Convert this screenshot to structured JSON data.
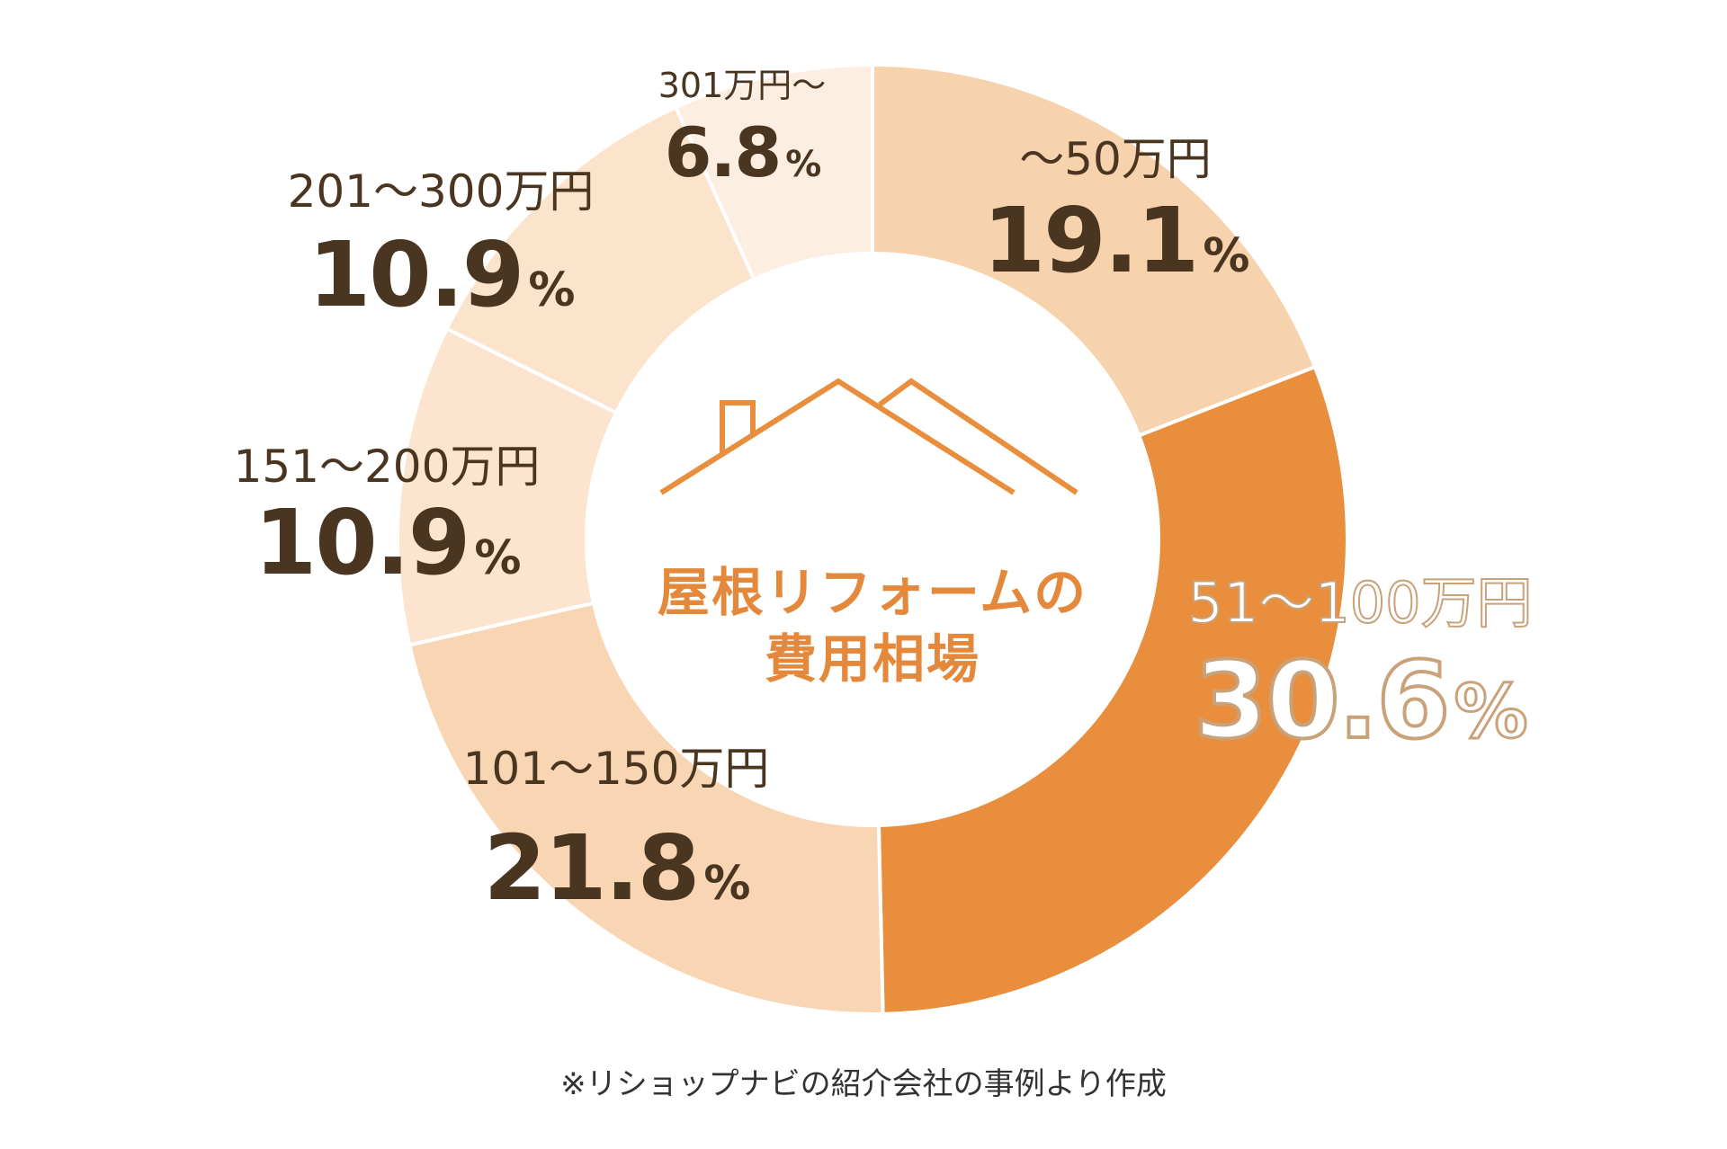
{
  "chart_data": {
    "type": "pie",
    "donut": true,
    "center_title_line1": "屋根リフォームの",
    "center_title_line2": "費用相場",
    "categories": [
      "〜50万円",
      "51〜100万円",
      "101〜150万円",
      "151〜200万円",
      "201〜300万円",
      "301万円〜"
    ],
    "values": [
      19.1,
      30.6,
      21.8,
      10.9,
      10.9,
      6.8
    ],
    "value_labels": [
      "19.1",
      "30.6",
      "21.8",
      "10.9",
      "10.9",
      "6.8"
    ],
    "unit": "%",
    "colors": [
      "#f6d2ad",
      "#e88e3c",
      "#f8d6b4",
      "#fce4cf",
      "#fbe3cc",
      "#fdeee2"
    ],
    "highlight_color": "#e88e3c",
    "icon": "house-roof-icon",
    "note": "※リショップナビの紹介会社の事例より作成"
  }
}
